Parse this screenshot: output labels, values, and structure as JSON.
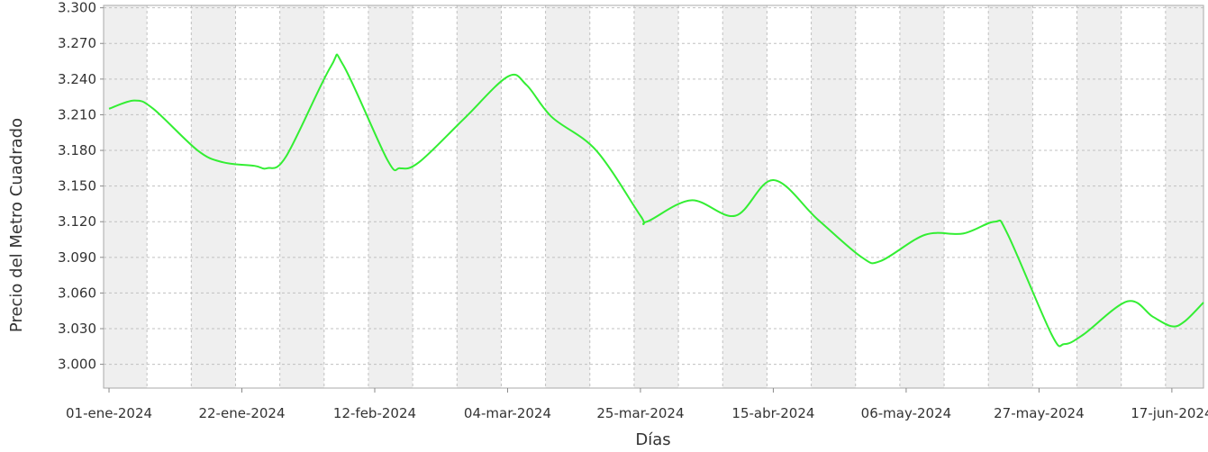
{
  "chart_data": {
    "type": "line",
    "title": "",
    "xlabel": "Días",
    "ylabel": "Precio del Metro Cuadrado",
    "ylim": [
      2.98,
      3.302
    ],
    "xlim": [
      "2023-12-31",
      "2024-06-22"
    ],
    "y_ticks": [
      "3.000",
      "3.030",
      "3.060",
      "3.090",
      "3.120",
      "3.150",
      "3.180",
      "3.210",
      "3.240",
      "3.270",
      "3.300"
    ],
    "x_tick_dates": [
      "2024-01-01",
      "2024-01-22",
      "2024-02-12",
      "2024-03-04",
      "2024-03-25",
      "2024-04-15",
      "2024-05-06",
      "2024-05-27",
      "2024-06-17"
    ],
    "x_tick_labels": [
      "01-ene-2024",
      "22-ene-2024",
      "12-feb-2024",
      "04-mar-2024",
      "25-mar-2024",
      "15-abr-2024",
      "06-may-2024",
      "27-may-2024",
      "17-jun-2024"
    ],
    "grid": true,
    "background_bands": "weekly alternating",
    "series": [
      {
        "color": "#33ee33",
        "points": [
          [
            "2024-01-01",
            3.215
          ],
          [
            "2024-01-05",
            3.222
          ],
          [
            "2024-01-08",
            3.215
          ],
          [
            "2024-01-15",
            3.18
          ],
          [
            "2024-01-19",
            3.17
          ],
          [
            "2024-01-24",
            3.167
          ],
          [
            "2024-01-26",
            3.165
          ],
          [
            "2024-01-29",
            3.175
          ],
          [
            "2024-02-05",
            3.25
          ],
          [
            "2024-02-07",
            3.252
          ],
          [
            "2024-02-14",
            3.172
          ],
          [
            "2024-02-16",
            3.165
          ],
          [
            "2024-02-19",
            3.17
          ],
          [
            "2024-02-26",
            3.206
          ],
          [
            "2024-03-04",
            3.242
          ],
          [
            "2024-03-07",
            3.235
          ],
          [
            "2024-03-11",
            3.208
          ],
          [
            "2024-03-18",
            3.18
          ],
          [
            "2024-03-25",
            3.125
          ],
          [
            "2024-03-26",
            3.12
          ],
          [
            "2024-04-02",
            3.138
          ],
          [
            "2024-04-09",
            3.125
          ],
          [
            "2024-04-15",
            3.155
          ],
          [
            "2024-04-22",
            3.122
          ],
          [
            "2024-04-29",
            3.09
          ],
          [
            "2024-05-02",
            3.087
          ],
          [
            "2024-05-09",
            3.109
          ],
          [
            "2024-05-15",
            3.11
          ],
          [
            "2024-05-20",
            3.12
          ],
          [
            "2024-05-22",
            3.11
          ],
          [
            "2024-05-29",
            3.025
          ],
          [
            "2024-05-31",
            3.017
          ],
          [
            "2024-06-03",
            3.025
          ],
          [
            "2024-06-10",
            3.053
          ],
          [
            "2024-06-14",
            3.04
          ],
          [
            "2024-06-17",
            3.032
          ],
          [
            "2024-06-19",
            3.036
          ],
          [
            "2024-06-22",
            3.052
          ]
        ]
      }
    ]
  }
}
